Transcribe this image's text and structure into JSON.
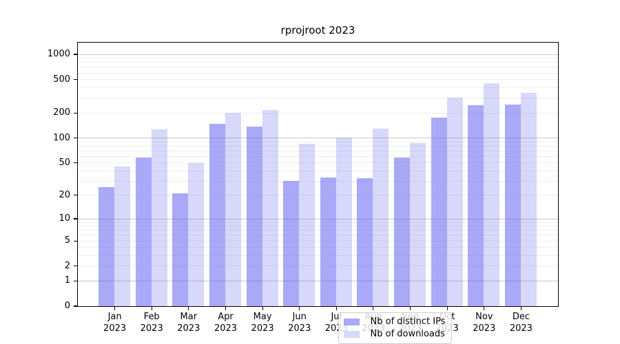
{
  "title": "rprojroot 2023",
  "chart_data": {
    "type": "bar",
    "title": "rprojroot 2023",
    "categories": [
      "Jan 2023",
      "Feb 2023",
      "Mar 2023",
      "Apr 2023",
      "May 2023",
      "Jun 2023",
      "Jul 2023",
      "Aug 2023",
      "Sep 2023",
      "Oct 2023",
      "Nov 2023",
      "Dec 2023"
    ],
    "months": [
      "Jan",
      "Feb",
      "Mar",
      "Apr",
      "May",
      "Jun",
      "Jul",
      "Aug",
      "Sep",
      "Oct",
      "Nov",
      "Dec"
    ],
    "year": "2023",
    "series": [
      {
        "name": "Nb of distinct IPs",
        "color": "rgba(98,98,240,0.55)",
        "values": [
          25,
          57,
          21,
          146,
          137,
          30,
          33,
          32,
          57,
          173,
          246,
          250
        ]
      },
      {
        "name": "Nb of downloads",
        "color": "rgba(98,98,240,0.25)",
        "values": [
          45,
          125,
          49,
          200,
          215,
          84,
          100,
          129,
          86,
          303,
          452,
          345
        ]
      }
    ],
    "xlabel": "",
    "ylabel": "",
    "yscale": "symlog",
    "ylim": [
      0,
      1380
    ],
    "yticks": [
      0,
      1,
      2,
      5,
      10,
      20,
      50,
      100,
      200,
      500,
      1000
    ],
    "grid": true,
    "legend_position": "lower center",
    "colors": {
      "major_grid": "#c8c8c8",
      "minor_grid": "#ededed",
      "axis": "#000000"
    }
  }
}
